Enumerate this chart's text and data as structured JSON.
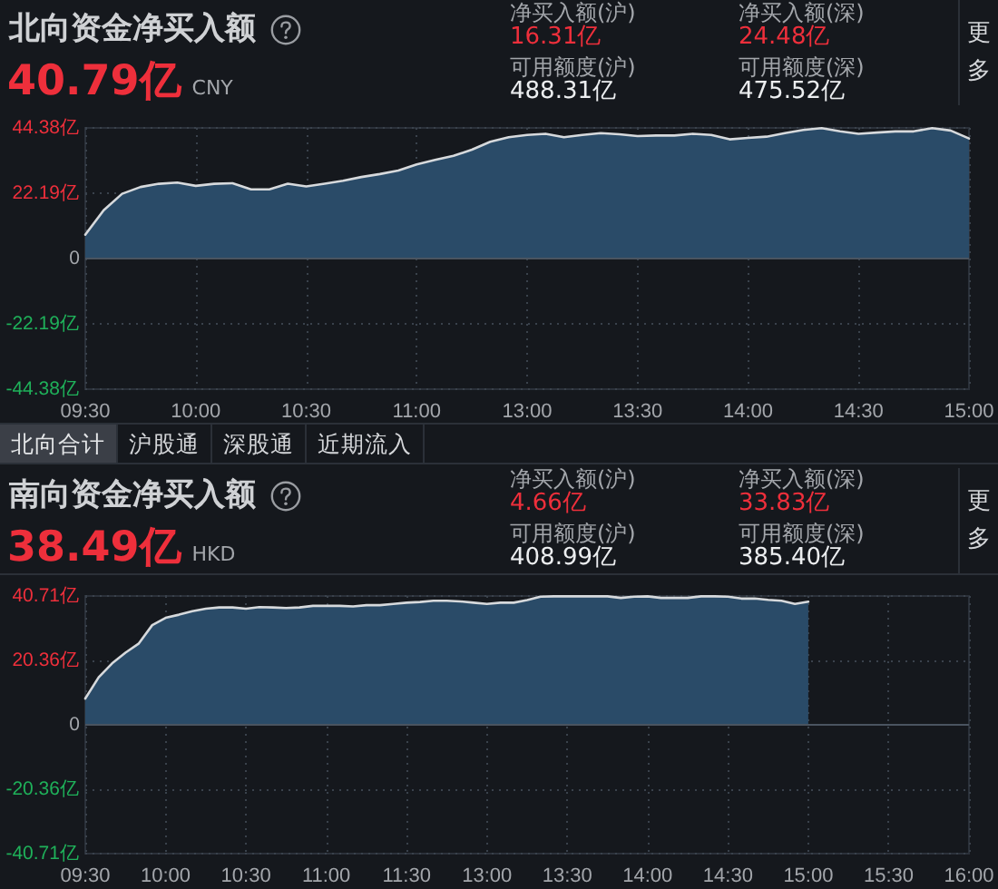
{
  "chart_data": [
    {
      "type": "area",
      "title": "北向资金净买入额",
      "annotations": [
        "40.79亿",
        "CNY",
        "净买入额(沪)",
        "16.31亿",
        "可用额度(沪)",
        "488.31亿",
        "净买入额(深)",
        "24.48亿",
        "可用额度(深)",
        "475.52亿",
        "更多",
        "北向合计",
        "沪股通",
        "深股通",
        "近期流入"
      ],
      "categories": [
        "09:30",
        null,
        null,
        null,
        null,
        null,
        "10:00",
        null,
        null,
        null,
        null,
        null,
        "10:30",
        null,
        null,
        null,
        null,
        null,
        "11:00",
        null,
        null,
        null,
        null,
        null,
        "13:00",
        null,
        null,
        null,
        null,
        null,
        "13:30",
        null,
        null,
        null,
        null,
        null,
        "14:00",
        null,
        null,
        null,
        null,
        null,
        "14:30",
        null,
        null,
        null,
        null,
        null,
        "15:00"
      ],
      "values": [
        8.1,
        16.4,
        22.0,
        24.3,
        25.4,
        25.8,
        24.7,
        25.4,
        25.6,
        23.5,
        23.5,
        25.4,
        24.5,
        25.4,
        26.4,
        27.7,
        28.7,
        29.9,
        32.0,
        33.5,
        34.9,
        37.0,
        39.7,
        41.2,
        42.0,
        42.4,
        41.2,
        42.0,
        42.6,
        42.2,
        41.6,
        41.8,
        41.8,
        42.4,
        42.0,
        40.5,
        41.0,
        41.4,
        42.6,
        43.7,
        44.3,
        43.2,
        42.4,
        42.8,
        43.2,
        43.2,
        44.3,
        43.5,
        40.8
      ],
      "color": "#2a4b68",
      "ylim": [
        -44.38,
        44.38
      ],
      "yticks": [
        {
          "value": -44.38,
          "label": "-44.38亿"
        },
        {
          "value": -22.19,
          "label": "-22.19亿"
        },
        0,
        {
          "value": 22.19,
          "label": "22.19亿"
        },
        {
          "value": 44.38,
          "label": "44.38亿"
        }
      ],
      "grid": true
    },
    {
      "type": "area",
      "title": "南向资金净买入额",
      "annotations": [
        "38.49亿",
        "HKD",
        "净买入额(沪)",
        "4.66亿",
        "可用额度(沪)",
        "408.99亿",
        "净买入额(深)",
        "33.83亿",
        "可用额度(深)",
        "385.40亿",
        "更多"
      ],
      "categories": [
        "09:30",
        null,
        null,
        null,
        null,
        null,
        "10:00",
        null,
        null,
        null,
        null,
        null,
        "10:30",
        null,
        null,
        null,
        null,
        null,
        "11:00",
        null,
        null,
        null,
        null,
        null,
        "11:30",
        null,
        null,
        null,
        null,
        null,
        "13:00",
        null,
        null,
        null,
        null,
        null,
        "13:30",
        null,
        null,
        null,
        null,
        null,
        "14:00",
        null,
        null,
        null,
        null,
        null,
        "14:30",
        null,
        null,
        null,
        null,
        null,
        "15:00",
        null,
        null,
        null,
        null,
        null,
        "15:30",
        null,
        null,
        null,
        null,
        null,
        "16:00"
      ],
      "values": [
        8.3,
        15.0,
        19.4,
        22.8,
        25.7,
        31.5,
        33.8,
        34.8,
        35.9,
        36.7,
        37.1,
        37.1,
        36.7,
        37.2,
        37.1,
        36.9,
        37.1,
        37.6,
        37.6,
        37.6,
        37.4,
        37.8,
        37.8,
        38.2,
        38.6,
        38.8,
        39.2,
        39.2,
        39.0,
        38.6,
        38.2,
        38.6,
        38.6,
        39.4,
        40.5,
        40.6,
        40.6,
        40.6,
        40.6,
        40.6,
        40.1,
        40.5,
        40.6,
        40.1,
        40.1,
        40.1,
        40.6,
        40.6,
        40.5,
        39.9,
        39.9,
        39.5,
        39.2,
        38.2,
        38.9,
        null,
        null,
        null,
        null,
        null,
        null,
        null,
        null,
        null,
        null,
        null,
        null
      ],
      "color": "#2a4b68",
      "ylim": [
        -40.71,
        40.71
      ],
      "yticks": [
        {
          "value": -40.71,
          "label": "-40.71亿"
        },
        {
          "value": -20.36,
          "label": "-20.36亿"
        },
        0,
        {
          "value": 20.36,
          "label": "20.36亿"
        },
        {
          "value": 40.71,
          "label": "40.71亿"
        }
      ],
      "grid": true
    }
  ]
}
